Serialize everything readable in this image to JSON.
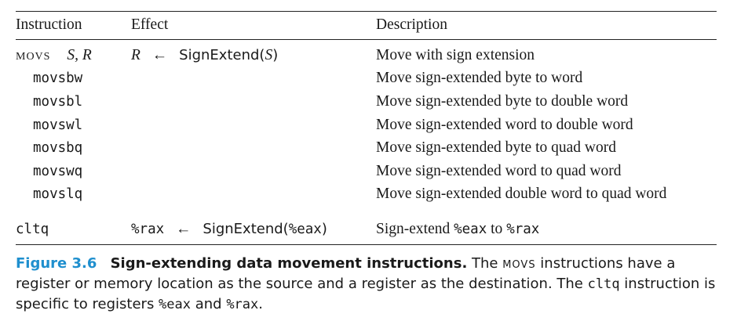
{
  "headers": {
    "instruction": "Instruction",
    "effect": "Effect",
    "description": "Description"
  },
  "main_row": {
    "instr": "movs",
    "operands": "S, R",
    "effect_r": "R",
    "arrow": "←",
    "effect_fn": "SignExtend(",
    "effect_s": "S",
    "effect_close": ")",
    "description": "Move with sign extension"
  },
  "rows": [
    {
      "instr": "movsbw",
      "description": "Move sign-extended byte to word"
    },
    {
      "instr": "movsbl",
      "description": "Move sign-extended byte to double word"
    },
    {
      "instr": "movswl",
      "description": "Move sign-extended word to double word"
    },
    {
      "instr": "movsbq",
      "description": "Move sign-extended byte to quad word"
    },
    {
      "instr": "movswq",
      "description": "Move sign-extended word to quad word"
    },
    {
      "instr": "movslq",
      "description": "Move sign-extended double word to quad word"
    }
  ],
  "cltq_row": {
    "instr": "cltq",
    "effect_reg": "%rax",
    "arrow": "←",
    "effect_fn": "SignExtend(",
    "effect_arg": "%eax",
    "effect_close": ")",
    "desc_a": "Sign-extend ",
    "desc_reg1": "%eax",
    "desc_b": " to ",
    "desc_reg2": "%rax"
  },
  "caption": {
    "label": "Figure 3.6",
    "title": "Sign-extending data movement instructions.",
    "t1": " The ",
    "movs": "movs",
    "t2": " instructions have a register or memory location as the source and a register as the destination. The ",
    "cltq": "cltq",
    "t3": " instruction is specific to registers ",
    "eax": "%eax",
    "t4": " and ",
    "rax": "%rax",
    "t5": "."
  },
  "colors": {
    "figure_label": "#1f8fce",
    "rules": "#222222"
  }
}
